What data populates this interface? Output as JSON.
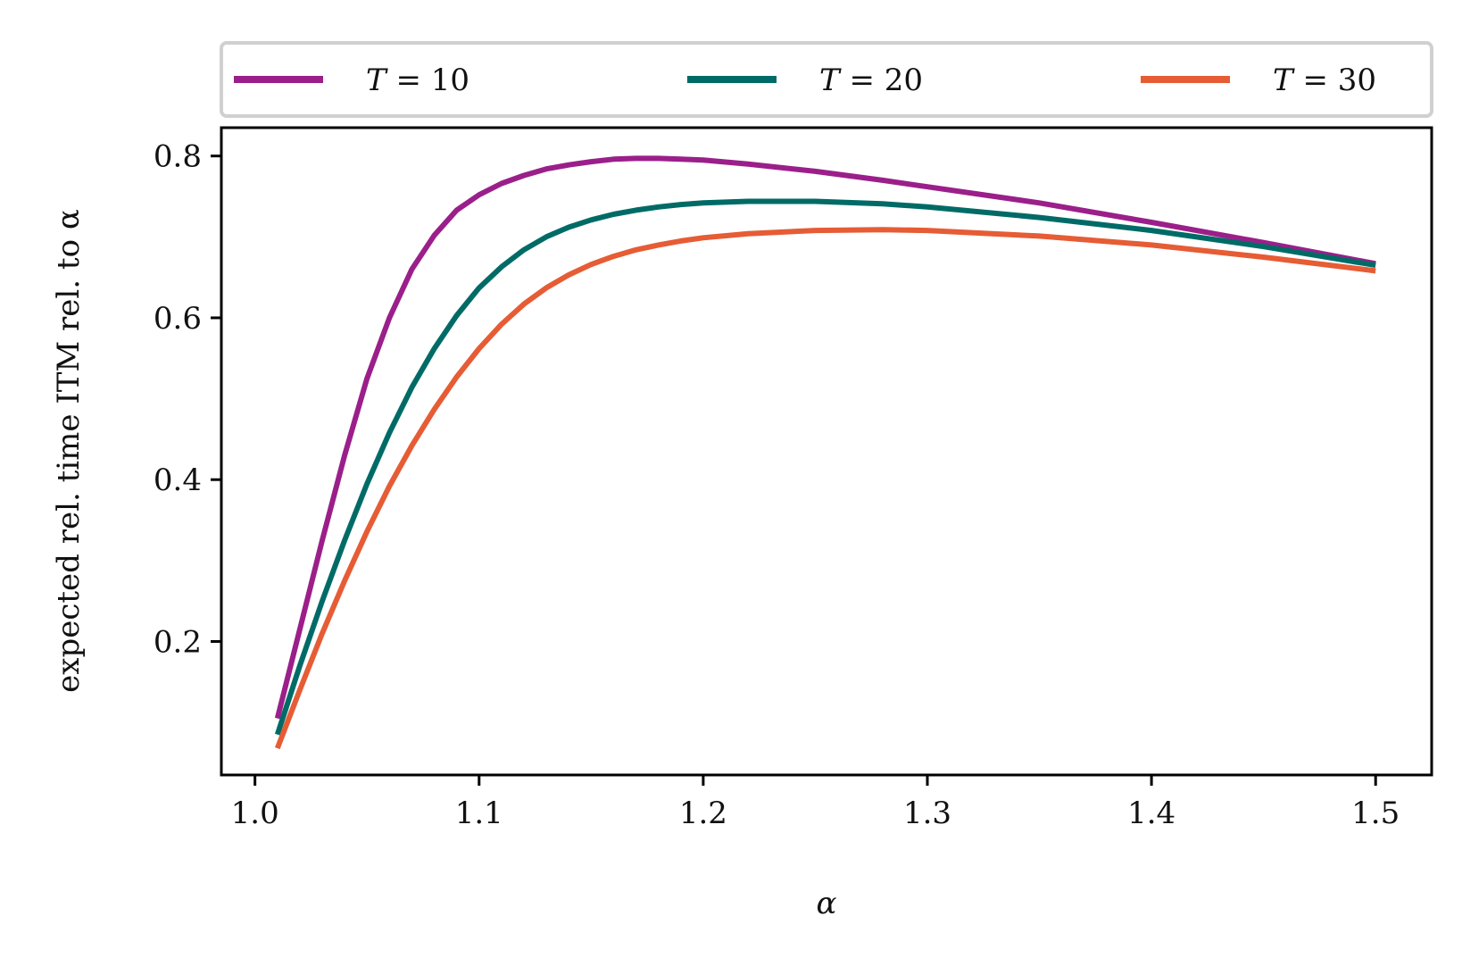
{
  "chart_data": {
    "type": "line",
    "xlabel": "α",
    "ylabel": "expected rel. time ITM rel. to α",
    "xlim": [
      0.985,
      1.525
    ],
    "ylim": [
      0.035,
      0.835
    ],
    "xticks": [
      1.0,
      1.1,
      1.2,
      1.3,
      1.4,
      1.5
    ],
    "xtick_labels": [
      "1.0",
      "1.1",
      "1.2",
      "1.3",
      "1.4",
      "1.5"
    ],
    "yticks": [
      0.2,
      0.4,
      0.6,
      0.8
    ],
    "ytick_labels": [
      "0.2",
      "0.4",
      "0.6",
      "0.8"
    ],
    "grid": false,
    "legend_placement": "top, outside, 3 columns",
    "x": [
      1.01,
      1.02,
      1.03,
      1.04,
      1.05,
      1.06,
      1.07,
      1.08,
      1.09,
      1.1,
      1.11,
      1.12,
      1.13,
      1.14,
      1.15,
      1.16,
      1.17,
      1.18,
      1.19,
      1.2,
      1.22,
      1.25,
      1.28,
      1.3,
      1.35,
      1.4,
      1.45,
      1.5
    ],
    "series": [
      {
        "name": "T = 10",
        "legend_var": "T",
        "legend_value": "10",
        "color": "#9b1f8a",
        "values": [
          0.105,
          0.215,
          0.325,
          0.43,
          0.525,
          0.6,
          0.66,
          0.702,
          0.733,
          0.752,
          0.766,
          0.776,
          0.784,
          0.789,
          0.793,
          0.796,
          0.797,
          0.797,
          0.796,
          0.795,
          0.79,
          0.781,
          0.77,
          0.762,
          0.742,
          0.718,
          0.693,
          0.667
        ]
      },
      {
        "name": "T = 20",
        "legend_var": "T",
        "legend_value": "20",
        "color": "#006b66",
        "values": [
          0.085,
          0.17,
          0.25,
          0.325,
          0.395,
          0.458,
          0.514,
          0.562,
          0.603,
          0.637,
          0.663,
          0.684,
          0.7,
          0.712,
          0.721,
          0.728,
          0.733,
          0.737,
          0.74,
          0.742,
          0.744,
          0.744,
          0.741,
          0.737,
          0.724,
          0.708,
          0.688,
          0.665
        ]
      },
      {
        "name": "T = 30",
        "legend_var": "T",
        "legend_value": "30",
        "color": "#e65c35",
        "values": [
          0.068,
          0.14,
          0.21,
          0.275,
          0.336,
          0.392,
          0.442,
          0.487,
          0.527,
          0.562,
          0.592,
          0.617,
          0.637,
          0.653,
          0.666,
          0.676,
          0.684,
          0.69,
          0.695,
          0.699,
          0.704,
          0.708,
          0.709,
          0.708,
          0.701,
          0.69,
          0.675,
          0.658
        ]
      }
    ]
  }
}
